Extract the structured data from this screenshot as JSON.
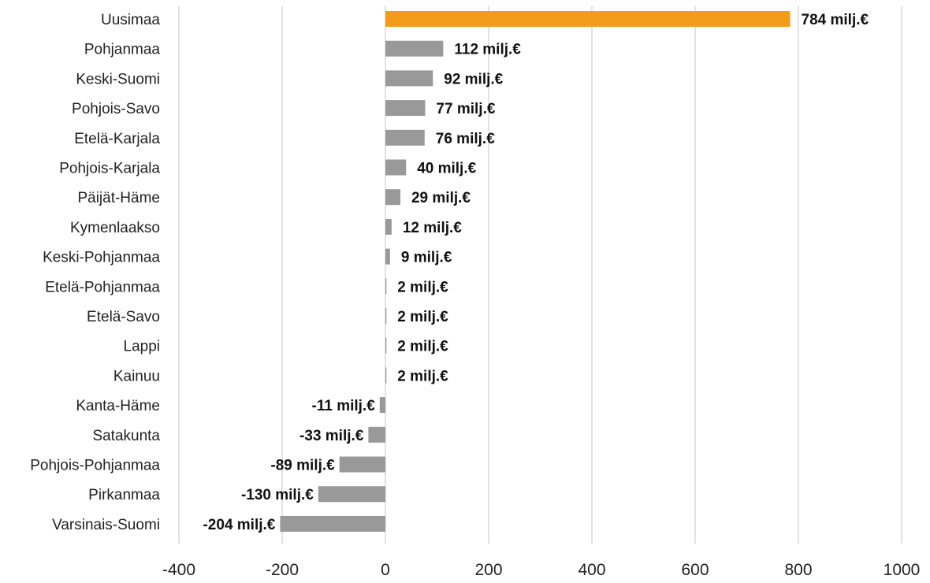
{
  "chart_data": {
    "type": "bar",
    "orientation": "horizontal",
    "categories": [
      "Uusimaa",
      "Pohjanmaa",
      "Keski-Suomi",
      "Pohjois-Savo",
      "Etelä-Karjala",
      "Pohjois-Karjala",
      "Päijät-Häme",
      "Kymenlaakso",
      "Keski-Pohjanmaa",
      "Etelä-Pohjanmaa",
      "Etelä-Savo",
      "Lappi",
      "Kainuu",
      "Kanta-Häme",
      "Satakunta",
      "Pohjois-Pohjanmaa",
      "Pirkanmaa",
      "Varsinais-Suomi"
    ],
    "values": [
      784,
      112,
      92,
      77,
      76,
      40,
      29,
      12,
      9,
      2,
      2,
      2,
      2,
      -11,
      -33,
      -89,
      -130,
      -204
    ],
    "value_labels": [
      "784 milj.€",
      "112 milj.€",
      "92 milj.€",
      "77 milj.€",
      "76 milj.€",
      "40 milj.€",
      "29 milj.€",
      "12 milj.€",
      "9 milj.€",
      "2 milj.€",
      "2 milj.€",
      "2 milj.€",
      "2 milj.€",
      "-11 milj.€",
      "-33 milj.€",
      "-89 milj.€",
      "-130 milj.€",
      "-204 milj.€"
    ],
    "highlight_index": 0,
    "xlim": [
      -400,
      1000
    ],
    "xticks": [
      -400,
      -200,
      0,
      200,
      400,
      600,
      800,
      1000
    ],
    "xtick_labels": [
      "-400",
      "-200",
      "0",
      "200",
      "400",
      "600",
      "800",
      "1000"
    ],
    "grid": true,
    "title": "",
    "xlabel": "",
    "ylabel": ""
  },
  "colors": {
    "highlight": "#f39c1b",
    "bar": "#999999",
    "grid": "#d9d9d9"
  }
}
